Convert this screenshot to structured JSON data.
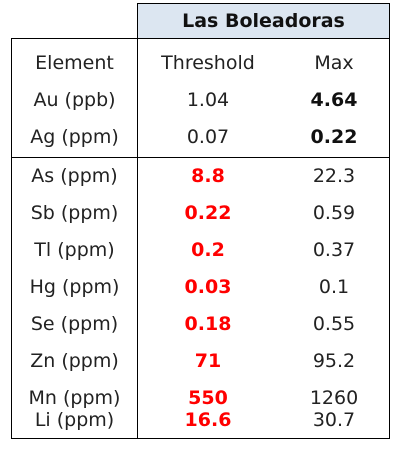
{
  "table": {
    "title": "Las Boleadoras",
    "headers": [
      "Element",
      "Threshold",
      "Max"
    ],
    "rows": [
      {
        "element": "Au (ppb)",
        "threshold": "1.04",
        "max": "4.64"
      },
      {
        "element": "Ag (ppm)",
        "threshold": "0.07",
        "max": "0.22"
      },
      {
        "element": "As (ppm)",
        "threshold": "8.8",
        "max": "22.3"
      },
      {
        "element": "Sb (ppm)",
        "threshold": "0.22",
        "max": "0.59"
      },
      {
        "element": "Tl (ppm)",
        "threshold": "0.2",
        "max": "0.37"
      },
      {
        "element": "Hg (ppm)",
        "threshold": "0.03",
        "max": "0.1"
      },
      {
        "element": "Se (ppm)",
        "threshold": "0.18",
        "max": "0.55"
      },
      {
        "element": "Zn (ppm)",
        "threshold": "71",
        "max": "95.2"
      },
      {
        "element": "Mn (ppm)",
        "threshold": "550",
        "max": "1260"
      },
      {
        "element": "Li (ppm)",
        "threshold": "16.6",
        "max": "30.7"
      }
    ]
  },
  "colors": {
    "header_fill": "#dce6f1",
    "highlight": "#ff0000"
  }
}
